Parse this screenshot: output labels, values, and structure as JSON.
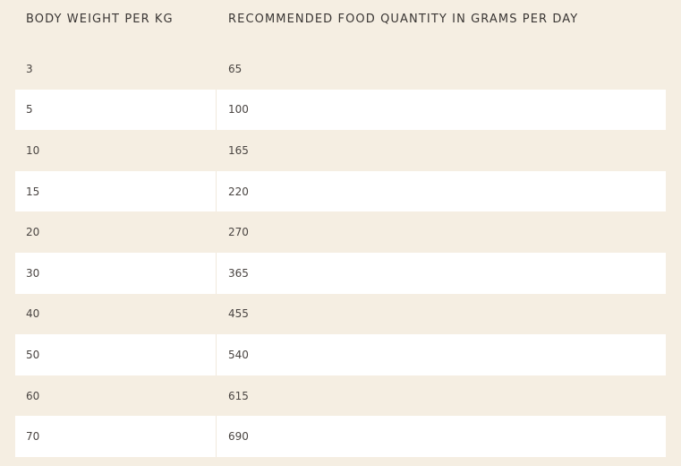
{
  "table": {
    "headers": {
      "weight": "BODY WEIGHT PER KG",
      "food": "RECOMMENDED FOOD QUANTITY IN GRAMS PER DAY"
    },
    "rows": [
      {
        "weight": "3",
        "food": "65"
      },
      {
        "weight": "5",
        "food": "100"
      },
      {
        "weight": "10",
        "food": "165"
      },
      {
        "weight": "15",
        "food": "220"
      },
      {
        "weight": "20",
        "food": "270"
      },
      {
        "weight": "30",
        "food": "365"
      },
      {
        "weight": "40",
        "food": "455"
      },
      {
        "weight": "50",
        "food": "540"
      },
      {
        "weight": "60",
        "food": "615"
      },
      {
        "weight": "70",
        "food": "690"
      }
    ]
  }
}
